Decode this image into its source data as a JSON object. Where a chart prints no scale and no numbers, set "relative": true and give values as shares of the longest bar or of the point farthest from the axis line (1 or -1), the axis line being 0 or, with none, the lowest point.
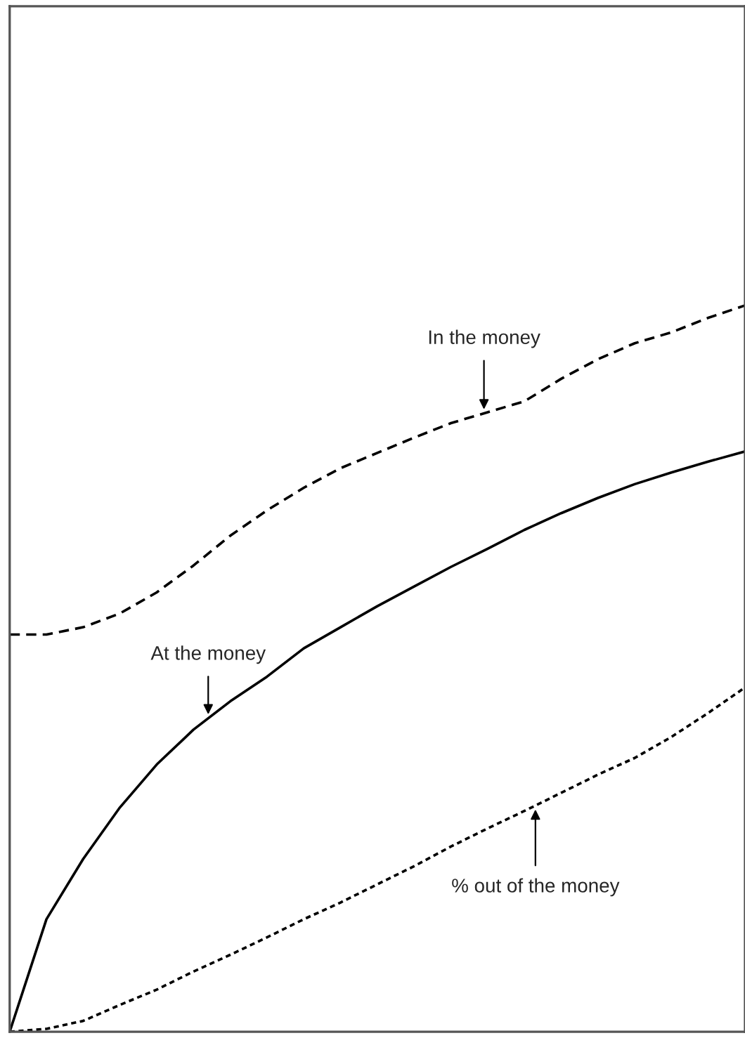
{
  "chart_data": {
    "type": "line",
    "relative": true,
    "legend": false,
    "categories": [
      null,
      null,
      null,
      null,
      null,
      null,
      null,
      null,
      null,
      null,
      null,
      null,
      null,
      null,
      null,
      null,
      null,
      null,
      null,
      null,
      null
    ],
    "series": [
      {
        "name": "In the money",
        "color": "#000000",
        "line_style": "dashed",
        "values": [
          0.547,
          0.547,
          0.557,
          0.576,
          0.605,
          0.642,
          0.683,
          0.718,
          0.749,
          0.776,
          0.797,
          0.818,
          0.838,
          0.853,
          0.868,
          0.899,
          0.926,
          0.948,
          0.963,
          0.983,
          1.0
        ]
      },
      {
        "name": "At the money",
        "color": "#000000",
        "line_style": "solid",
        "values": [
          0.0,
          0.155,
          0.238,
          0.309,
          0.368,
          0.416,
          0.455,
          0.489,
          0.528,
          0.557,
          0.586,
          0.613,
          0.64,
          0.665,
          0.691,
          0.714,
          0.735,
          0.754,
          0.77,
          0.785,
          0.799
        ]
      },
      {
        "name": "% out of the money",
        "color": "#000000",
        "line_style": "dotted",
        "values": [
          0.0,
          0.004,
          0.015,
          0.037,
          0.058,
          0.083,
          0.106,
          0.13,
          0.155,
          0.178,
          0.203,
          0.228,
          0.255,
          0.28,
          0.304,
          0.329,
          0.354,
          0.377,
          0.406,
          0.439,
          0.474
        ]
      }
    ]
  }
}
